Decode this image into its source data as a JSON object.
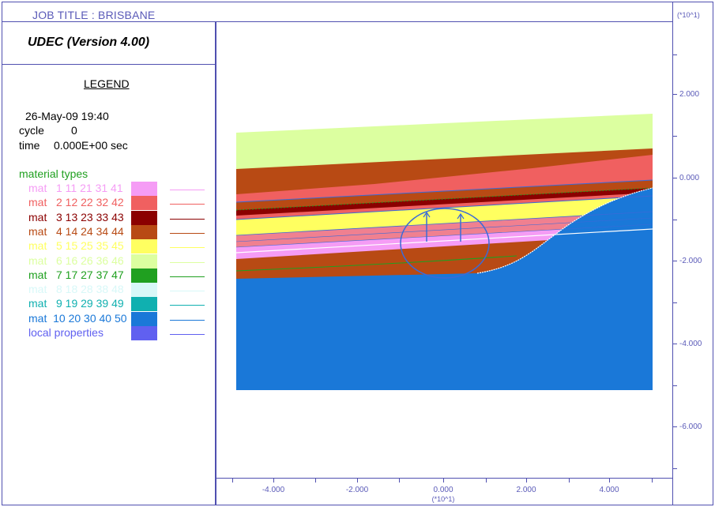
{
  "header": {
    "job_title": "JOB TITLE :  BRISBANE",
    "app_name": "UDEC (Version 4.00)"
  },
  "legend": {
    "title": "LEGEND",
    "date": "26-May-09  19:40",
    "cycle_label": "cycle",
    "cycle_value": "0",
    "time_label": "time",
    "time_value": "0.000E+00 sec",
    "material_header": "material types",
    "materials": [
      {
        "text": "mat   1 11 21 31 41",
        "color": "#f59cf5"
      },
      {
        "text": "mat   2 12 22 32 42",
        "color": "#f06060"
      },
      {
        "text": "mat   3 13 23 33 43",
        "color": "#8b0000"
      },
      {
        "text": "mat   4 14 24 34 44",
        "color": "#b84a14"
      },
      {
        "text": "mat   5 15 25 35 45",
        "color": "#ffff60"
      },
      {
        "text": "mat   6 16 26 36 46",
        "color": "#dcffa0"
      },
      {
        "text": "mat   7 17 27 37 47",
        "color": "#20a020"
      },
      {
        "text": "mat   8 18 28 38 48",
        "color": "#d8f8f8"
      },
      {
        "text": "mat   9 19 29 39 49",
        "color": "#10b0b0"
      },
      {
        "text": "mat  10 20 30 40 50",
        "color": "#1a78d8"
      },
      {
        "text": "local properties",
        "color": "#6060f0"
      }
    ]
  },
  "axes": {
    "scale_label": "(*10^1)",
    "right_ticks": [
      "2.000",
      "0.000",
      "-2.000",
      "-4.000",
      "-6.000"
    ],
    "bottom_ticks": [
      "-4.000",
      "-2.000",
      "0.000",
      "2.000",
      "4.000"
    ]
  },
  "colors": {
    "frame": "#5050b0",
    "label": "#5a5ab8"
  }
}
